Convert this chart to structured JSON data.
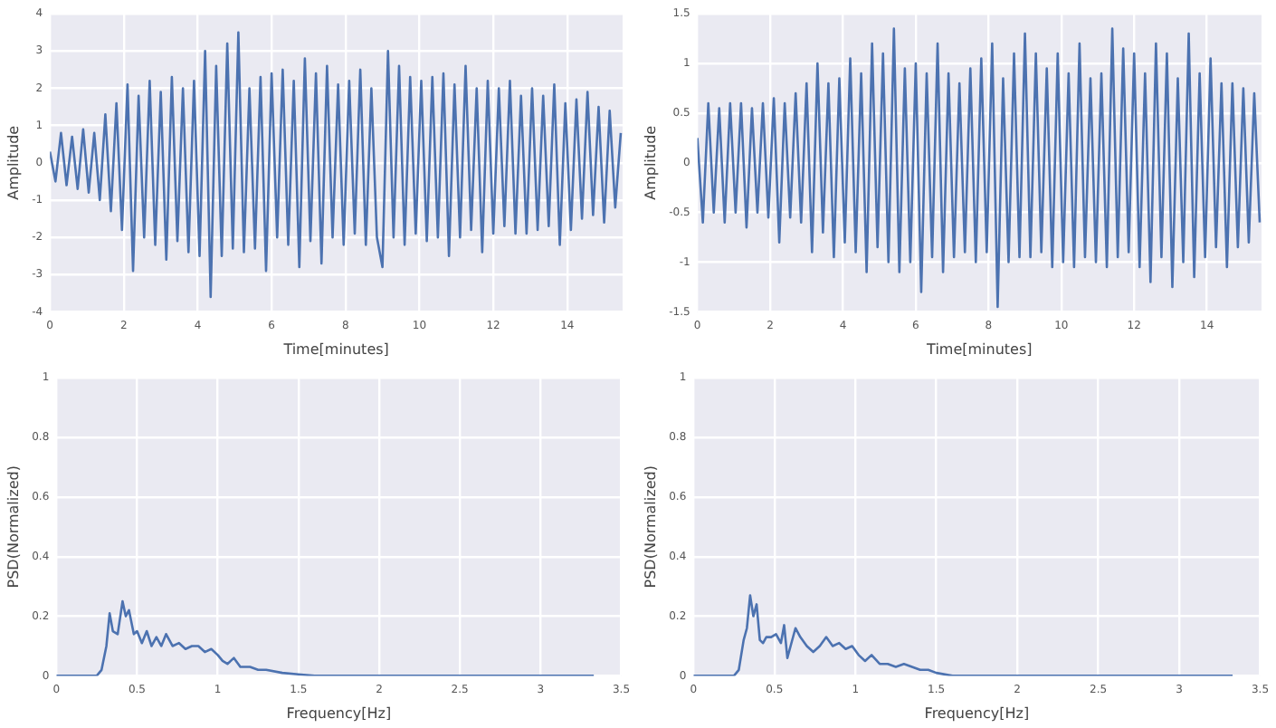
{
  "chart_data": [
    {
      "type": "line",
      "xlabel": "Time[minutes]",
      "ylabel": "Amplitude",
      "xlim": [
        0,
        15.5
      ],
      "xticks": [
        0,
        2,
        4,
        6,
        8,
        10,
        12,
        14
      ],
      "ylim": [
        -4,
        4
      ],
      "yticks": [
        -4,
        -3,
        -2,
        -1,
        0,
        1,
        2,
        3,
        4
      ],
      "grid": true,
      "legend": false,
      "marker": "none",
      "line_style": "solid",
      "series": [
        {
          "color": "#4c72b0",
          "x": [
            0,
            0.15,
            0.3,
            0.45,
            0.6,
            0.75,
            0.9,
            1.05,
            1.2,
            1.35,
            1.5,
            1.65,
            1.8,
            1.95,
            2.1,
            2.25,
            2.4,
            2.55,
            2.7,
            2.85,
            3,
            3.15,
            3.3,
            3.45,
            3.6,
            3.75,
            3.9,
            4.05,
            4.2,
            4.35,
            4.5,
            4.65,
            4.8,
            4.95,
            5.1,
            5.25,
            5.4,
            5.55,
            5.7,
            5.85,
            6,
            6.15,
            6.3,
            6.45,
            6.6,
            6.75,
            6.9,
            7.05,
            7.2,
            7.35,
            7.5,
            7.65,
            7.8,
            7.95,
            8.1,
            8.25,
            8.4,
            8.55,
            8.7,
            8.85,
            9,
            9.15,
            9.3,
            9.45,
            9.6,
            9.75,
            9.9,
            10.05,
            10.2,
            10.35,
            10.5,
            10.65,
            10.8,
            10.95,
            11.1,
            11.25,
            11.4,
            11.55,
            11.7,
            11.85,
            12,
            12.15,
            12.3,
            12.45,
            12.6,
            12.75,
            12.9,
            13.05,
            13.2,
            13.35,
            13.5,
            13.65,
            13.8,
            13.95,
            14.1,
            14.25,
            14.4,
            14.55,
            14.7,
            14.85,
            15,
            15.15,
            15.3,
            15.45
          ],
          "values": [
            0.3,
            -0.5,
            0.8,
            -0.6,
            0.7,
            -0.7,
            0.9,
            -0.8,
            0.8,
            -1,
            1.3,
            -1.3,
            1.6,
            -1.8,
            2.1,
            -2.9,
            1.8,
            -2,
            2.2,
            -2.2,
            1.9,
            -2.6,
            2.3,
            -2.1,
            2,
            -2.4,
            2.2,
            -2.5,
            3,
            -3.6,
            2.6,
            -2.5,
            3.2,
            -2.3,
            3.5,
            -2.4,
            2,
            -2.3,
            2.3,
            -2.9,
            2.4,
            -2,
            2.5,
            -2.2,
            2.2,
            -2.8,
            2.8,
            -2.1,
            2.4,
            -2.7,
            2.6,
            -2,
            2.1,
            -2.2,
            2.2,
            -1.9,
            2.5,
            -2.2,
            2,
            -2,
            -2.8,
            3,
            -2,
            2.6,
            -2.2,
            2.3,
            -1.9,
            2.2,
            -2.1,
            2.3,
            -2,
            2.4,
            -2.5,
            2.1,
            -2,
            2.6,
            -1.8,
            2,
            -2.4,
            2.2,
            -1.9,
            2,
            -1.7,
            2.2,
            -1.9,
            1.8,
            -1.9,
            2,
            -1.8,
            1.8,
            -1.7,
            2.1,
            -2.2,
            1.6,
            -1.8,
            1.7,
            -1.5,
            1.9,
            -1.4,
            1.5,
            -1.6,
            1.4,
            -1.2,
            0.8
          ]
        }
      ]
    },
    {
      "type": "line",
      "xlabel": "Time[minutes]",
      "ylabel": "Amplitude",
      "xlim": [
        0,
        15.5
      ],
      "xticks": [
        0,
        2,
        4,
        6,
        8,
        10,
        12,
        14
      ],
      "ylim": [
        -1.5,
        1.5
      ],
      "yticks": [
        -1.5,
        -1,
        -0.5,
        0,
        0.5,
        1,
        1.5
      ],
      "grid": true,
      "legend": false,
      "marker": "none",
      "line_style": "solid",
      "series": [
        {
          "color": "#4c72b0",
          "x": [
            0,
            0.15,
            0.3,
            0.45,
            0.6,
            0.75,
            0.9,
            1.05,
            1.2,
            1.35,
            1.5,
            1.65,
            1.8,
            1.95,
            2.1,
            2.25,
            2.4,
            2.55,
            2.7,
            2.85,
            3,
            3.15,
            3.3,
            3.45,
            3.6,
            3.75,
            3.9,
            4.05,
            4.2,
            4.35,
            4.5,
            4.65,
            4.8,
            4.95,
            5.1,
            5.25,
            5.4,
            5.55,
            5.7,
            5.85,
            6,
            6.15,
            6.3,
            6.45,
            6.6,
            6.75,
            6.9,
            7.05,
            7.2,
            7.35,
            7.5,
            7.65,
            7.8,
            7.95,
            8.1,
            8.25,
            8.4,
            8.55,
            8.7,
            8.85,
            9,
            9.15,
            9.3,
            9.45,
            9.6,
            9.75,
            9.9,
            10.05,
            10.2,
            10.35,
            10.5,
            10.65,
            10.8,
            10.95,
            11.1,
            11.25,
            11.4,
            11.55,
            11.7,
            11.85,
            12,
            12.15,
            12.3,
            12.45,
            12.6,
            12.75,
            12.9,
            13.05,
            13.2,
            13.35,
            13.5,
            13.65,
            13.8,
            13.95,
            14.1,
            14.25,
            14.4,
            14.55,
            14.7,
            14.85,
            15,
            15.15,
            15.3,
            15.45
          ],
          "values": [
            0.25,
            -0.6,
            0.6,
            -0.5,
            0.55,
            -0.6,
            0.6,
            -0.5,
            0.6,
            -0.65,
            0.55,
            -0.5,
            0.6,
            -0.55,
            0.65,
            -0.8,
            0.6,
            -0.55,
            0.7,
            -0.6,
            0.8,
            -0.9,
            1,
            -0.7,
            0.8,
            -0.95,
            0.85,
            -0.8,
            1.05,
            -0.9,
            0.9,
            -1.1,
            1.2,
            -0.85,
            1.1,
            -1,
            1.35,
            -1.1,
            0.95,
            -1,
            1,
            -1.3,
            0.9,
            -0.95,
            1.2,
            -1.1,
            0.9,
            -0.95,
            0.8,
            -0.9,
            0.95,
            -1,
            1.05,
            -0.9,
            1.2,
            -1.45,
            0.85,
            -1,
            1.1,
            -0.95,
            1.3,
            -0.95,
            1.1,
            -0.9,
            0.95,
            -1.05,
            1.1,
            -1,
            0.9,
            -1.05,
            1.2,
            -0.95,
            0.85,
            -1,
            0.9,
            -1.05,
            1.35,
            -0.95,
            1.15,
            -0.9,
            1.1,
            -1.05,
            0.9,
            -1.2,
            1.2,
            -0.95,
            1.1,
            -1.25,
            0.85,
            -1,
            1.3,
            -1.15,
            0.9,
            -0.95,
            1.05,
            -0.85,
            0.8,
            -1.05,
            0.8,
            -0.85,
            0.75,
            -0.8,
            0.7,
            -0.6
          ]
        }
      ]
    },
    {
      "type": "line",
      "xlabel": "Frequency[Hz]",
      "ylabel": "PSD(Normalized)",
      "xlim": [
        0,
        3.5
      ],
      "xticks": [
        0,
        0.5,
        1,
        1.5,
        2,
        2.5,
        3,
        3.5
      ],
      "ylim": [
        0,
        1
      ],
      "yticks": [
        0,
        0.2,
        0.4,
        0.6,
        0.8,
        1
      ],
      "grid": true,
      "legend": false,
      "marker": "none",
      "line_style": "solid",
      "series": [
        {
          "color": "#4c72b0",
          "x": [
            0,
            0.25,
            0.28,
            0.31,
            0.33,
            0.35,
            0.38,
            0.41,
            0.43,
            0.45,
            0.48,
            0.5,
            0.53,
            0.56,
            0.59,
            0.62,
            0.65,
            0.68,
            0.72,
            0.76,
            0.8,
            0.84,
            0.88,
            0.92,
            0.96,
            1,
            1.03,
            1.06,
            1.1,
            1.14,
            1.2,
            1.25,
            1.3,
            1.4,
            1.5,
            1.6,
            2,
            3.33
          ],
          "values": [
            0,
            0,
            0.02,
            0.1,
            0.21,
            0.15,
            0.14,
            0.25,
            0.2,
            0.22,
            0.14,
            0.15,
            0.11,
            0.15,
            0.1,
            0.13,
            0.1,
            0.14,
            0.1,
            0.11,
            0.09,
            0.1,
            0.1,
            0.08,
            0.09,
            0.07,
            0.05,
            0.04,
            0.06,
            0.03,
            0.03,
            0.02,
            0.02,
            0.01,
            0.005,
            0,
            0,
            0
          ]
        }
      ]
    },
    {
      "type": "line",
      "xlabel": "Frequency[Hz]",
      "ylabel": "PSD(Normalized)",
      "xlim": [
        0,
        3.5
      ],
      "xticks": [
        0,
        0.5,
        1,
        1.5,
        2,
        2.5,
        3,
        3.5
      ],
      "ylim": [
        0,
        1
      ],
      "yticks": [
        0,
        0.2,
        0.4,
        0.6,
        0.8,
        1
      ],
      "grid": true,
      "legend": false,
      "marker": "none",
      "line_style": "solid",
      "series": [
        {
          "color": "#4c72b0",
          "x": [
            0,
            0.25,
            0.28,
            0.31,
            0.33,
            0.35,
            0.37,
            0.39,
            0.41,
            0.43,
            0.45,
            0.48,
            0.51,
            0.54,
            0.56,
            0.58,
            0.6,
            0.63,
            0.66,
            0.7,
            0.74,
            0.78,
            0.82,
            0.86,
            0.9,
            0.94,
            0.98,
            1.02,
            1.06,
            1.1,
            1.15,
            1.2,
            1.25,
            1.3,
            1.4,
            1.45,
            1.5,
            1.6,
            2,
            3.33
          ],
          "values": [
            0,
            0,
            0.02,
            0.12,
            0.16,
            0.27,
            0.2,
            0.24,
            0.12,
            0.11,
            0.13,
            0.13,
            0.14,
            0.11,
            0.17,
            0.06,
            0.1,
            0.16,
            0.13,
            0.1,
            0.08,
            0.1,
            0.13,
            0.1,
            0.11,
            0.09,
            0.1,
            0.07,
            0.05,
            0.07,
            0.04,
            0.04,
            0.03,
            0.04,
            0.02,
            0.02,
            0.01,
            0,
            0,
            0
          ]
        }
      ]
    }
  ]
}
